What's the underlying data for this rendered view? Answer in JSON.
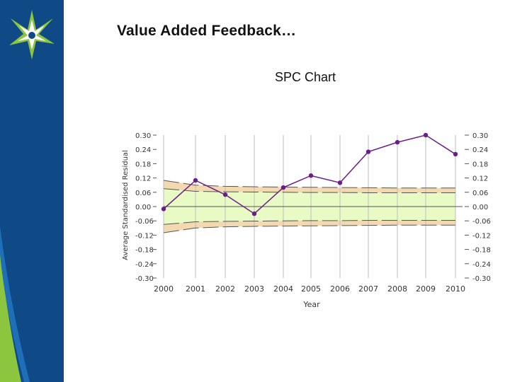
{
  "slide": {
    "title": "Value Added Feedback…"
  },
  "colors": {
    "sidebar": "#0f4a86",
    "accent_green": "#8cc63f",
    "series": "#6a1e8a",
    "outer_band": "#f2d9b0",
    "inner_band": "#e9fbc4"
  },
  "icons": {
    "logo": "star-logo-icon"
  },
  "chart_data": {
    "type": "line",
    "title": "SPC Chart",
    "xlabel": "Year",
    "ylabel": "Average Standardised Residual",
    "ylim": [
      -0.3,
      0.3
    ],
    "yticks": [
      "0.30",
      "0.24",
      "0.18",
      "0.12",
      "0.06",
      "0.00",
      "-0.06",
      "-0.12",
      "-0.18",
      "-0.24",
      "-0.30"
    ],
    "xticks": [
      "2000",
      "2001",
      "2002",
      "2003",
      "2004",
      "2005",
      "2006",
      "2007",
      "2008",
      "2009",
      "2010"
    ],
    "grid": {
      "vertical": true,
      "horizontal": false
    },
    "series": [
      {
        "x": [
          2000,
          2001,
          2002,
          2003,
          2004,
          2005,
          2006,
          2007,
          2008,
          2009,
          2010
        ],
        "values": [
          -0.01,
          0.11,
          0.05,
          -0.03,
          0.08,
          0.13,
          0.1,
          0.23,
          0.27,
          0.3,
          0.22
        ]
      }
    ],
    "control_limits": {
      "x": [
        2000,
        2001,
        2002,
        2003,
        2004,
        2005,
        2006,
        2007,
        2008,
        2009,
        2010
      ],
      "upper_outer": [
        0.11,
        0.09,
        0.085,
        0.083,
        0.082,
        0.081,
        0.08,
        0.079,
        0.078,
        0.078,
        0.078
      ],
      "upper_inner": [
        0.075,
        0.064,
        0.062,
        0.061,
        0.06,
        0.059,
        0.059,
        0.058,
        0.058,
        0.058,
        0.058
      ],
      "lower_inner": [
        -0.075,
        -0.064,
        -0.062,
        -0.061,
        -0.06,
        -0.059,
        -0.059,
        -0.058,
        -0.058,
        -0.058,
        -0.058
      ],
      "lower_outer": [
        -0.11,
        -0.09,
        -0.085,
        -0.083,
        -0.082,
        -0.081,
        -0.08,
        -0.079,
        -0.078,
        -0.078,
        -0.078
      ]
    }
  }
}
